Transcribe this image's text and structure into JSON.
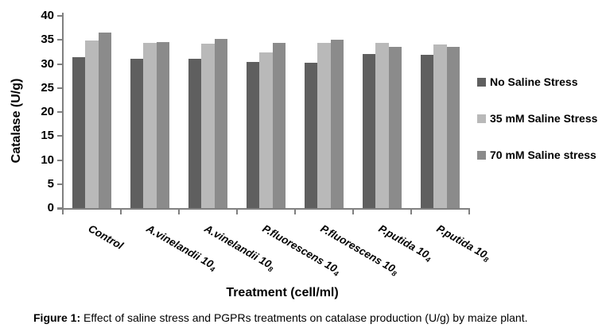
{
  "figure": {
    "caption_prefix": "Figure 1:",
    "caption_text": " Effect of saline stress and PGPRs treatments on catalase production (U/g) by maize plant."
  },
  "chart_data": {
    "type": "bar",
    "title": "",
    "xlabel": "Treatment (cell/ml)",
    "ylabel": "Catalase (U/g)",
    "ylim": [
      0,
      40
    ],
    "ytick_step": 5,
    "grid": false,
    "legend_position": "right",
    "axis_color": "#808080",
    "text_color": "#000000",
    "categories": [
      {
        "label": "Control",
        "exp": ""
      },
      {
        "label": "A.vinelandii 10",
        "exp": "4"
      },
      {
        "label": "A.vinelandii 10",
        "exp": "8"
      },
      {
        "label": "P.fluorescens 10",
        "exp": "4"
      },
      {
        "label": "P.fluorescens 10",
        "exp": "8"
      },
      {
        "label": "P.putida 10",
        "exp": "4"
      },
      {
        "label": "P.putida 10",
        "exp": "8"
      }
    ],
    "series": [
      {
        "name": "No Saline Stress",
        "color": "#5f5f5f",
        "values": [
          31.4,
          31.0,
          31.0,
          30.4,
          30.2,
          32.0,
          31.9
        ]
      },
      {
        "name": "35 mM Saline Stress",
        "color": "#b9b9b9",
        "values": [
          34.8,
          34.4,
          34.2,
          32.4,
          34.4,
          34.3,
          34.1
        ]
      },
      {
        "name": "70 mM Saline stress",
        "color": "#8b8b8b",
        "values": [
          36.5,
          34.5,
          35.2,
          34.4,
          35.0,
          33.5,
          33.5
        ]
      }
    ]
  }
}
